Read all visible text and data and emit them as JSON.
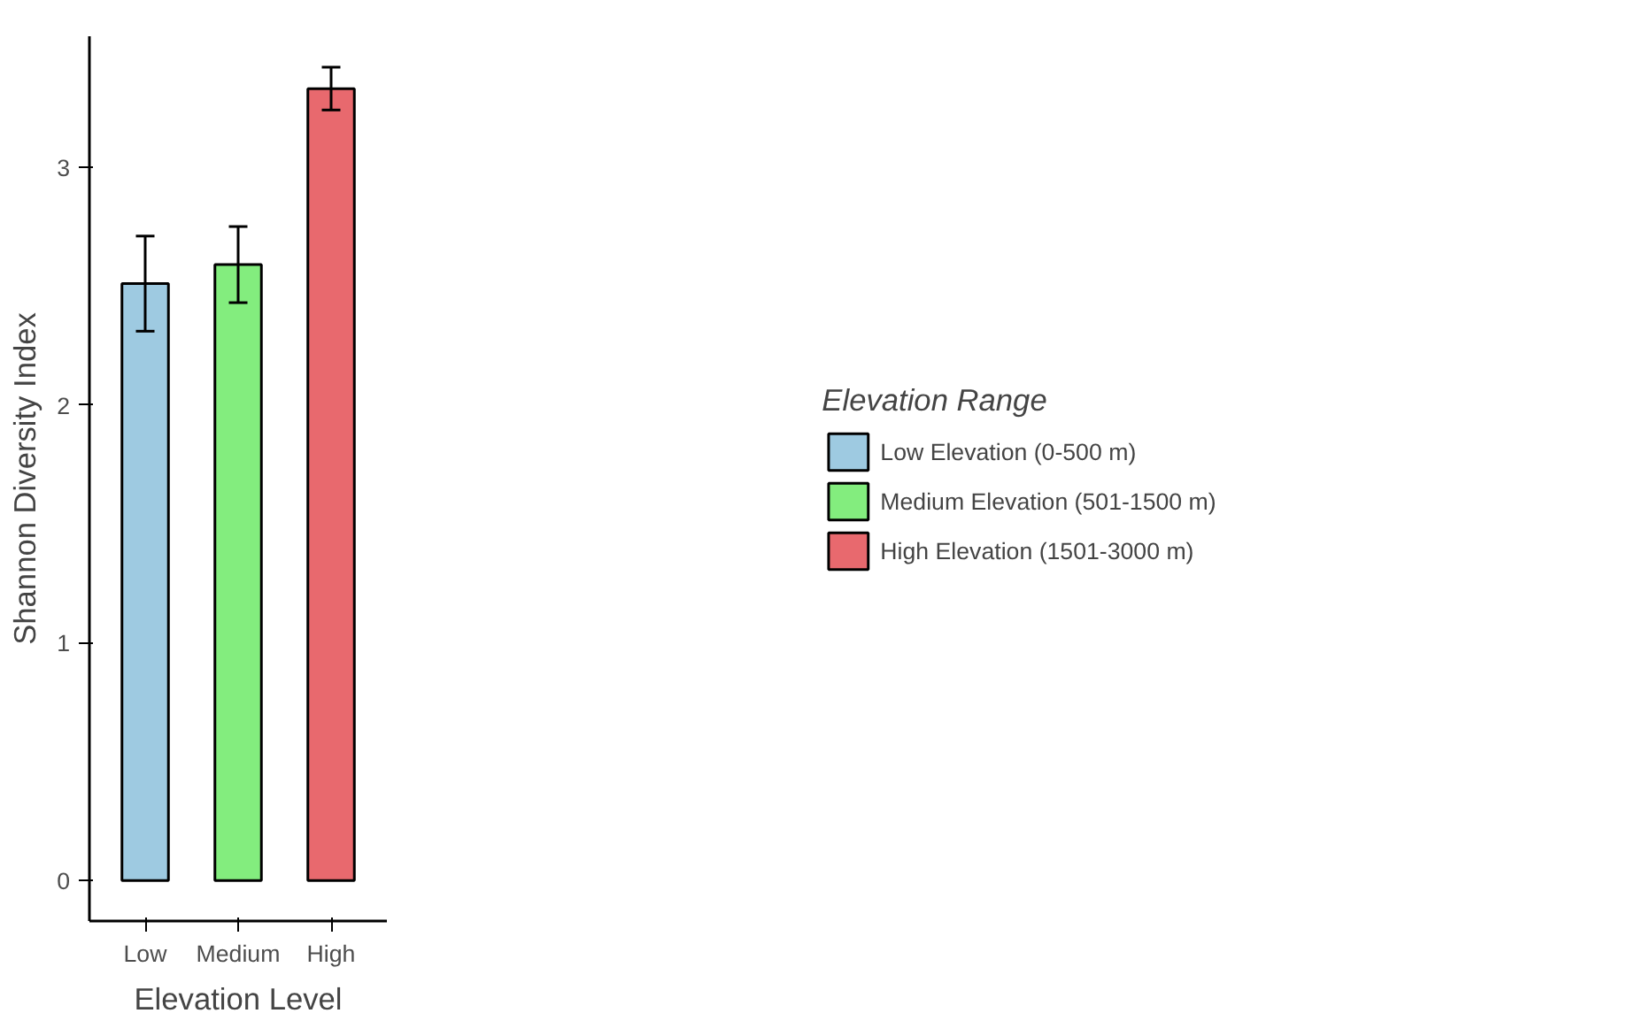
{
  "chart_data": {
    "type": "bar",
    "xlabel": "Elevation Level",
    "ylabel": "Shannon Diversity Index",
    "legend_title": "Elevation Range",
    "categories": [
      "Low",
      "Medium",
      "High"
    ],
    "series": [
      {
        "name": "Low Elevation (0-500 m)",
        "color": "#9ecae1",
        "values": [
          2.51,
          null,
          null
        ],
        "errors": [
          0.2,
          null,
          null
        ]
      },
      {
        "name": "Medium Elevation (501-1500 m)",
        "color": "#83ed7e",
        "values": [
          null,
          2.59,
          null
        ],
        "errors": [
          null,
          0.16,
          null
        ]
      },
      {
        "name": "High Elevation (1501-3000 m)",
        "color": "#e8696e",
        "values": [
          null,
          null,
          3.33
        ],
        "errors": [
          null,
          null,
          0.09
        ]
      }
    ],
    "ylim": [
      -0.17,
      3.55
    ],
    "yticks": [
      0,
      1,
      2,
      3
    ],
    "grid": false,
    "legend": "right"
  }
}
